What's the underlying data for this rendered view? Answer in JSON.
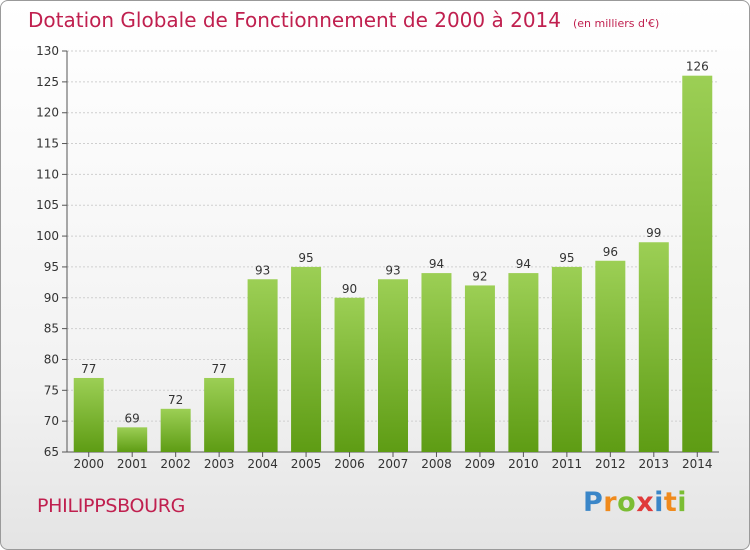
{
  "chart_data": {
    "type": "bar",
    "title": "Dotation Globale de Fonctionnement de 2000 à 2014",
    "unit_label": "(en milliers d'€)",
    "xlabel": "",
    "ylabel": "",
    "categories": [
      "2000",
      "2001",
      "2002",
      "2003",
      "2004",
      "2005",
      "2006",
      "2007",
      "2008",
      "2009",
      "2010",
      "2011",
      "2012",
      "2013",
      "2014"
    ],
    "values": [
      77,
      69,
      72,
      77,
      93,
      95,
      90,
      93,
      94,
      92,
      94,
      95,
      96,
      99,
      126
    ],
    "ylim": [
      65,
      130
    ],
    "yticks": [
      65,
      70,
      75,
      80,
      85,
      90,
      95,
      100,
      105,
      110,
      115,
      120,
      125,
      130
    ],
    "grid": true,
    "bar_color_top": "#9ccf55",
    "bar_color_bottom": "#5e9c14"
  },
  "footer": {
    "place": "PHILIPPSBOURG",
    "logo_letters": [
      "P",
      "r",
      "o",
      "x",
      "i",
      "t",
      "i"
    ]
  },
  "colors": {
    "title": "#c0204f",
    "grid": "#cfcfcf"
  }
}
